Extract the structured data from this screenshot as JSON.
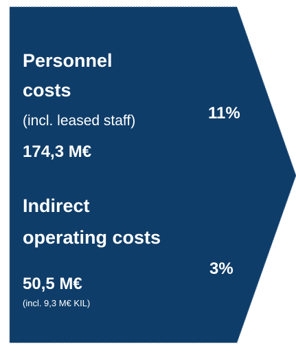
{
  "blocks": [
    {
      "title": [
        "Personnel",
        "costs"
      ],
      "note": "(incl. leased staff)",
      "amount": "174,3 M€",
      "share": "11%"
    },
    {
      "title": [
        "Indirect",
        "operating costs"
      ],
      "amount": "50,5 M€",
      "note": "(incl. 9,3 M€ KIL)",
      "share": "3%"
    }
  ]
}
